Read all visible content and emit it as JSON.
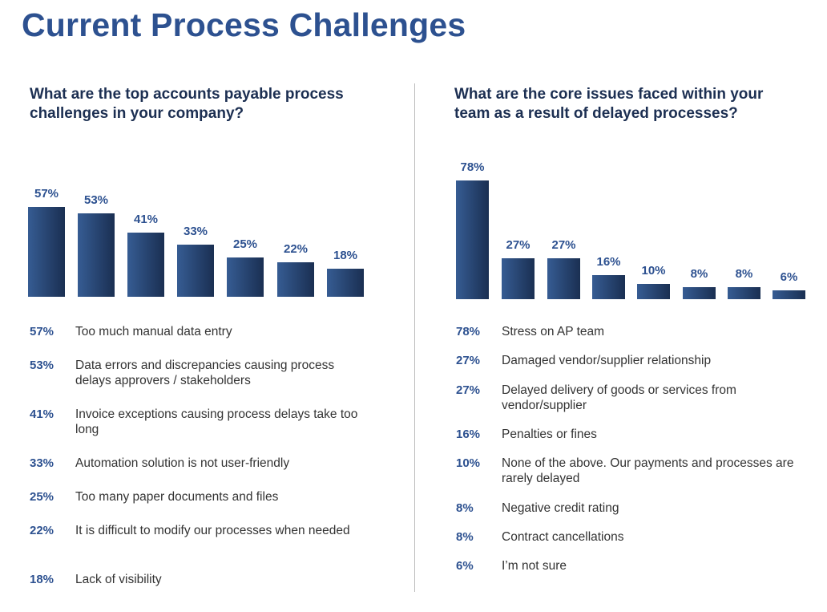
{
  "title": "Current Process Challenges",
  "chart_data": [
    {
      "type": "bar",
      "title": "What are the top accounts payable process challenges in your company?",
      "unit": "%",
      "values": [
        57,
        53,
        41,
        33,
        25,
        22,
        18
      ],
      "labels": [
        "57%",
        "53%",
        "41%",
        "33%",
        "25%",
        "22%",
        "18%"
      ],
      "categories": [
        "Too much manual data entry",
        "Data errors and discrepancies causing process delays approvers / stakeholders",
        "Invoice exceptions causing process delays take too long",
        "Automation solution is not user-friendly",
        "Too many paper documents and files",
        "It is difficult to modify our processes when needed",
        "Lack of visibility"
      ],
      "grid": false
    },
    {
      "type": "bar",
      "title": "What are the core issues faced within your team as a result of delayed processes?",
      "unit": "%",
      "values": [
        78,
        27,
        27,
        16,
        10,
        8,
        8,
        6
      ],
      "labels": [
        "78%",
        "27%",
        "27%",
        "16%",
        "10%",
        "8%",
        "8%",
        "6%"
      ],
      "categories": [
        "Stress on AP team",
        "Damaged vendor/supplier relationship",
        "Delayed delivery of goods or services from vendor/supplier",
        "Penalties or fines",
        "None of the above. Our payments and processes are rarely delayed",
        "Negative credit rating",
        "Contract cancellations",
        "I’m not sure"
      ],
      "grid": false
    }
  ],
  "colors": {
    "title": "#2d5190",
    "question": "#1c2f52",
    "bar_light": "#365c93",
    "bar_dark": "#1a2f52",
    "text": "#333333"
  }
}
